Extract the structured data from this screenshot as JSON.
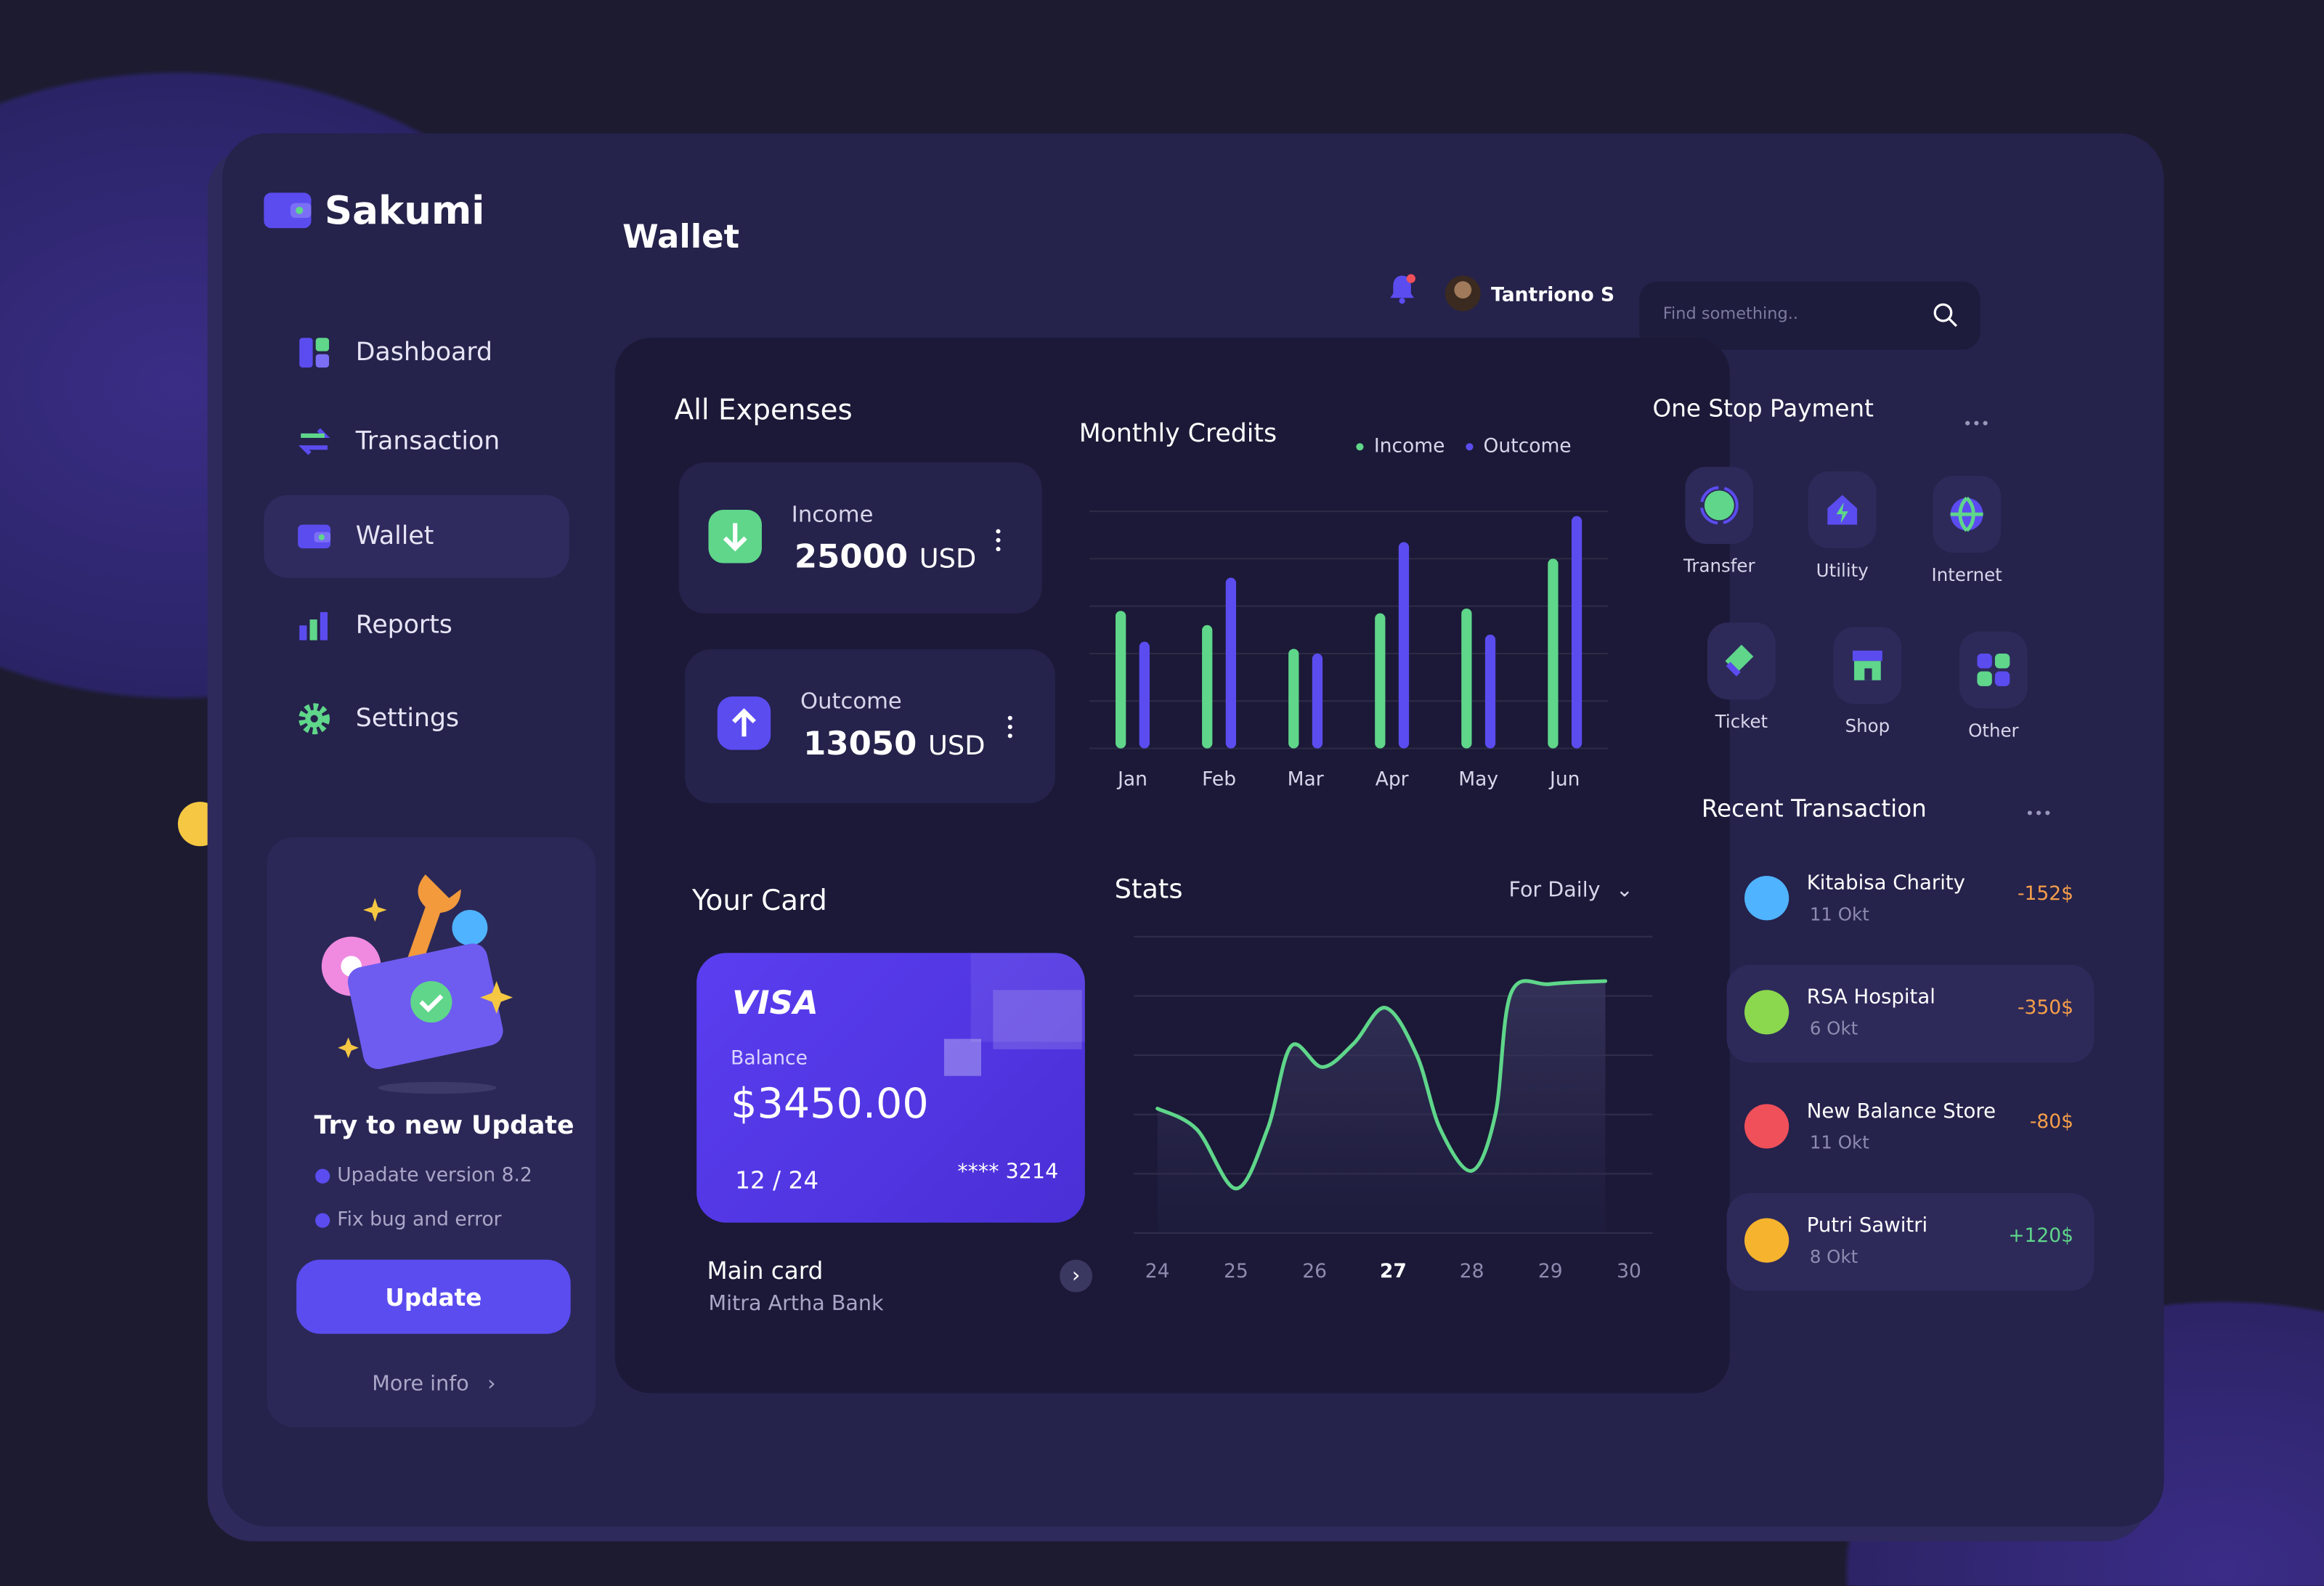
{
  "brand": "Sakumi",
  "nav": {
    "items": [
      "Dashboard",
      "Transaction",
      "Wallet",
      "Reports",
      "Settings"
    ],
    "active": 2
  },
  "update": {
    "title": "Try to new Update",
    "items": [
      "Upadate version 8.2",
      "Fix bug and error"
    ],
    "button": "Update",
    "more": "More info"
  },
  "page_title": "Wallet",
  "user": {
    "name": "Tantriono S"
  },
  "search": {
    "placeholder": "Find something.."
  },
  "expenses": {
    "title": "All Expenses",
    "cards": [
      {
        "label": "Income",
        "amount": 25000,
        "unit": "USD"
      },
      {
        "label": "Outcome",
        "amount": 13050,
        "unit": "USD"
      }
    ]
  },
  "card": {
    "section_title": "Your Card",
    "brand": "VISA",
    "balance_label": "Balance",
    "balance": "$3450.00",
    "expiry": "12 / 24",
    "number": "**** 3214",
    "name": "Main card",
    "bank": "Mitra Artha Bank"
  },
  "stats_filter": "For Daily",
  "chart_data": [
    {
      "type": "bar",
      "title": "Monthly Credits",
      "categories": [
        "Jan",
        "Feb",
        "Mar",
        "Apr",
        "May",
        "Jun"
      ],
      "series": [
        {
          "name": "Income",
          "color": "#5fd68a",
          "values": [
            58,
            52,
            42,
            57,
            59,
            80
          ]
        },
        {
          "name": "Outcome",
          "color": "#5b4cf0",
          "values": [
            45,
            72,
            40,
            87,
            48,
            98
          ]
        }
      ],
      "ylim": [
        0,
        100
      ],
      "yticks": [
        0,
        20,
        40,
        60,
        80,
        100
      ],
      "grid": true
    },
    {
      "type": "line",
      "title": "Stats",
      "x": [
        24,
        24.5,
        25,
        25.4,
        25.7,
        26.1,
        26.5,
        26.9,
        27.3,
        27.6,
        28,
        28.3,
        28.5,
        29,
        29.7
      ],
      "series": [
        {
          "name": "Stats",
          "color": "#5fd68a",
          "values": [
            42,
            35,
            15,
            35,
            63,
            56,
            64,
            76,
            60,
            35,
            21,
            40,
            81,
            84,
            85
          ]
        }
      ],
      "xlim": [
        23.7,
        30.3
      ],
      "xticks": [
        24,
        25,
        26,
        27,
        28,
        29,
        30
      ],
      "bold_tick": 3,
      "ylim": [
        0,
        100
      ],
      "yticks": [
        0,
        20,
        40,
        60,
        80,
        100
      ],
      "grid": true,
      "smooth": true
    }
  ],
  "payments": {
    "title": "One Stop Payment",
    "items": [
      "Transfer",
      "Utility",
      "Internet",
      "Ticket",
      "Shop",
      "Other"
    ]
  },
  "transactions": {
    "title": "Recent Transaction",
    "rows": [
      {
        "name": "Kitabisa Charity",
        "date": "11 Okt",
        "amount": "-152$",
        "icon_color": "#4fb3ff",
        "highlight": false
      },
      {
        "name": "RSA Hospital",
        "date": "6 Okt",
        "amount": "-350$",
        "icon_color": "#8bd84e",
        "highlight": true
      },
      {
        "name": "New Balance Store",
        "date": "11 Okt",
        "amount": "-80$",
        "icon_color": "#f0505a",
        "highlight": false
      },
      {
        "name": "Putri Sawitri",
        "date": "8 Okt",
        "amount": "+120$",
        "icon_color": "#f5b32e",
        "highlight": true
      }
    ]
  }
}
